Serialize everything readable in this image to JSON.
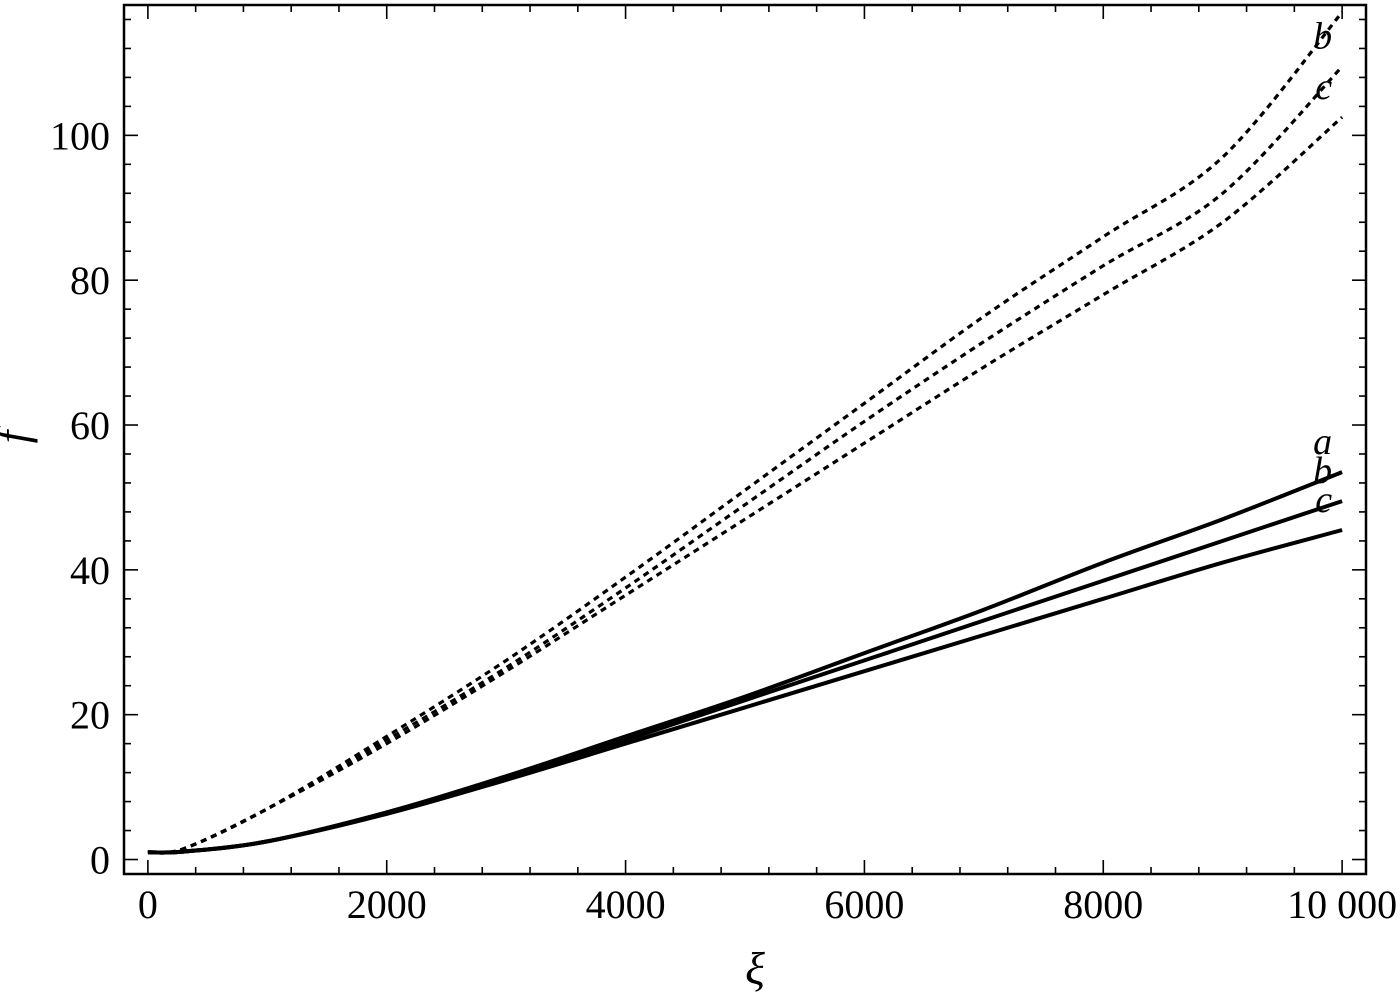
{
  "chart_data": {
    "type": "line",
    "title": "",
    "xlabel": "ξ",
    "ylabel": "f",
    "xlim": [
      -200,
      10200
    ],
    "ylim": [
      -2,
      118
    ],
    "xticks": [
      0,
      2000,
      4000,
      6000,
      8000,
      10000
    ],
    "xtick_labels": [
      "0",
      "2000",
      "4000",
      "6000",
      "8000",
      "10 000"
    ],
    "yticks": [
      0,
      20,
      40,
      60,
      80,
      100
    ],
    "ytick_labels": [
      "0",
      "20",
      "40",
      "60",
      "80",
      "100"
    ],
    "grid": false,
    "legend": "none",
    "x": [
      0,
      300,
      1000,
      2000,
      3000,
      4000,
      5000,
      6000,
      7000,
      8000,
      9000,
      10000
    ],
    "series": [
      {
        "label": "a",
        "style": "dashed",
        "values": [
          1,
          1.5,
          7,
          17,
          27.5,
          39,
          51,
          63,
          75,
          86,
          97,
          117
        ]
      },
      {
        "label": "b",
        "style": "dashed",
        "values": [
          1,
          1.5,
          7,
          16.5,
          26.5,
          37.5,
          49,
          60.5,
          71.5,
          82,
          92,
          109.5
        ]
      },
      {
        "label": "c",
        "style": "dashed",
        "values": [
          1,
          1.5,
          7,
          16,
          26,
          36.5,
          47,
          57.5,
          68,
          78,
          88,
          102.5
        ]
      },
      {
        "label": "a",
        "style": "solid",
        "values": [
          1,
          1.1,
          2.5,
          6.5,
          11.5,
          17,
          22.5,
          28.5,
          34.5,
          41,
          47,
          53.5
        ]
      },
      {
        "label": "b",
        "style": "solid",
        "values": [
          1,
          1.1,
          2.5,
          6.5,
          11.3,
          16.5,
          22,
          27.5,
          33,
          38.5,
          44,
          49.5
        ]
      },
      {
        "label": "c",
        "style": "solid",
        "values": [
          1,
          1.1,
          2.5,
          6.3,
          11,
          16,
          21,
          26,
          31,
          36,
          41,
          45.5
        ]
      }
    ]
  }
}
